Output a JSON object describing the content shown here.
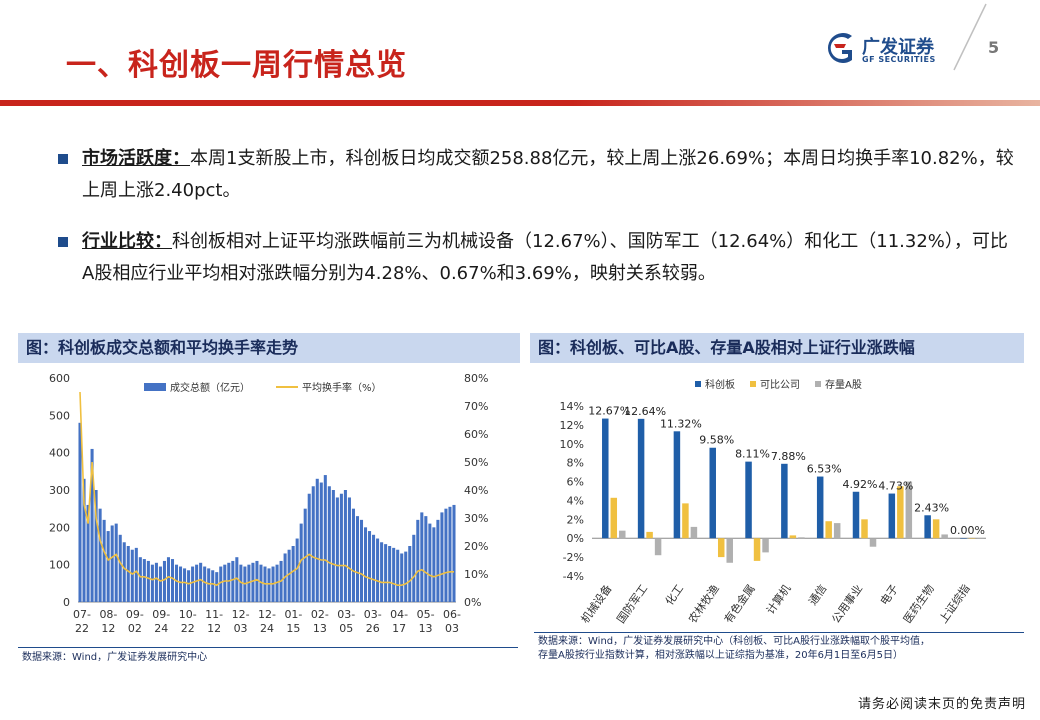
{
  "header": {
    "title": "一、科创板一周行情总览",
    "logo_cn": "广发证券",
    "logo_en": "GF SECURITIES",
    "page_number": "5"
  },
  "bullets": [
    {
      "head": "市场活跃度：",
      "body": "本周1支新股上市，科创板日均成交额258.88亿元，较上周上涨26.69%；本周日均换手率10.82%，较上周上涨2.40pct。"
    },
    {
      "head": "行业比较：",
      "body": "科创板相对上证平均涨跌幅前三为机械设备（12.67%）、国防军工（12.64%）和化工（11.32%），可比A股相应行业平均相对涨跌幅分别为4.28%、0.67%和3.69%，映射关系较弱。"
    }
  ],
  "chart_left": {
    "header": "图：科创板成交总额和平均换手率走势",
    "source": "数据来源：Wind，广发证券发展研究中心"
  },
  "chart_right": {
    "header": "图：科创板、可比A股、存量A股相对上证行业涨跌幅",
    "source_line1": "数据来源：Wind，广发证券发展研究中心（科创板、可比A股行业涨跌幅取个股平均值，",
    "source_line2": "存量A股按行业指数计算，相对涨跌幅以上证综指为基准，20年6月1日至6月5日）"
  },
  "footer": {
    "disclaimer": "请务必阅读末页的免责声明"
  },
  "chart_data": [
    {
      "type": "bar+line",
      "title": "科创板成交总额和平均换手率走势",
      "legend": [
        "成交总额（亿元）",
        "平均换手率（%）"
      ],
      "x_ticks": [
        "07-22",
        "08-12",
        "09-02",
        "09-24",
        "10-22",
        "11-12",
        "12-03",
        "12-24",
        "01-15",
        "02-13",
        "03-05",
        "03-26",
        "04-17",
        "05-13",
        "06-03"
      ],
      "y_left_ticks": [
        "0",
        "100",
        "200",
        "300",
        "400",
        "500",
        "600"
      ],
      "y_right_ticks": [
        "0%",
        "10%",
        "20%",
        "30%",
        "40%",
        "50%",
        "60%",
        "70%",
        "80%"
      ],
      "ylim_left": [
        0,
        600
      ],
      "ylim_right": [
        0,
        80
      ],
      "series": [
        {
          "name": "成交总额（亿元）",
          "color": "#4472c4",
          "values": [
            480,
            330,
            260,
            410,
            300,
            250,
            220,
            190,
            205,
            210,
            180,
            160,
            150,
            140,
            145,
            120,
            115,
            110,
            100,
            105,
            95,
            110,
            120,
            115,
            100,
            95,
            90,
            85,
            95,
            100,
            105,
            95,
            90,
            85,
            80,
            95,
            100,
            105,
            110,
            120,
            100,
            95,
            100,
            105,
            110,
            100,
            95,
            90,
            95,
            100,
            110,
            130,
            140,
            150,
            170,
            210,
            250,
            290,
            310,
            330,
            320,
            340,
            310,
            300,
            280,
            290,
            300,
            280,
            250,
            230,
            220,
            200,
            190,
            180,
            170,
            160,
            155,
            150,
            145,
            140,
            130,
            135,
            150,
            180,
            220,
            240,
            230,
            210,
            200,
            220,
            240,
            250,
            255,
            260
          ]
        },
        {
          "name": "平均换手率（%）",
          "color": "#f0c040",
          "values": [
            75,
            35,
            28,
            50,
            30,
            22,
            18,
            15,
            16,
            17,
            14,
            12,
            11,
            10,
            11,
            9,
            9,
            8.5,
            8,
            8.5,
            7.5,
            8,
            9,
            8.5,
            7.5,
            7,
            7,
            6.5,
            7,
            7.5,
            8,
            7,
            6.5,
            6.5,
            6,
            7,
            7.5,
            7.5,
            8,
            8.5,
            7,
            6.5,
            7,
            7.5,
            8,
            7,
            6.5,
            6.5,
            6.5,
            7,
            7.5,
            9,
            10,
            11,
            12,
            15,
            16,
            17,
            16,
            15.5,
            15,
            15,
            14,
            13.5,
            13,
            13,
            13,
            12,
            11,
            10.5,
            10,
            9,
            8.5,
            8,
            7.5,
            7,
            7,
            7,
            6.5,
            6,
            6,
            6.5,
            7.5,
            9,
            11,
            11.5,
            10.5,
            9.5,
            9,
            9.5,
            10,
            10.5,
            10.8,
            10.8
          ]
        }
      ]
    },
    {
      "type": "bar",
      "title": "科创板、可比A股、存量A股相对上证行业涨跌幅",
      "categories": [
        "机械设备",
        "国防军工",
        "化工",
        "农林牧渔",
        "有色金属",
        "计算机",
        "通信",
        "公用事业",
        "电子",
        "医药生物",
        "上证综指"
      ],
      "ylim": [
        -4,
        14
      ],
      "y_ticks": [
        "-4%",
        "-2%",
        "0%",
        "2%",
        "4%",
        "6%",
        "8%",
        "10%",
        "12%",
        "14%"
      ],
      "series": [
        {
          "name": "科创板",
          "color": "#1f5ea8",
          "values": [
            12.67,
            12.64,
            11.32,
            9.58,
            8.11,
            7.88,
            6.53,
            4.92,
            4.73,
            2.43,
            0.0
          ]
        },
        {
          "name": "可比公司",
          "color": "#f0c040",
          "values": [
            4.28,
            0.67,
            3.69,
            -2.0,
            -2.4,
            0.3,
            1.8,
            2.0,
            5.5,
            2.0,
            0.0
          ]
        },
        {
          "name": "存量A股",
          "color": "#b0b0b0",
          "values": [
            0.8,
            -1.8,
            1.2,
            -2.6,
            -1.5,
            0.1,
            1.6,
            -0.9,
            6.0,
            0.4,
            0.0
          ]
        }
      ],
      "data_labels": [
        "12.67%",
        "12.64%",
        "11.32%",
        "9.58%",
        "8.11%",
        "7.88%",
        "6.53%",
        "4.92%",
        "4.73%",
        "2.43%",
        "0.00%"
      ]
    }
  ]
}
